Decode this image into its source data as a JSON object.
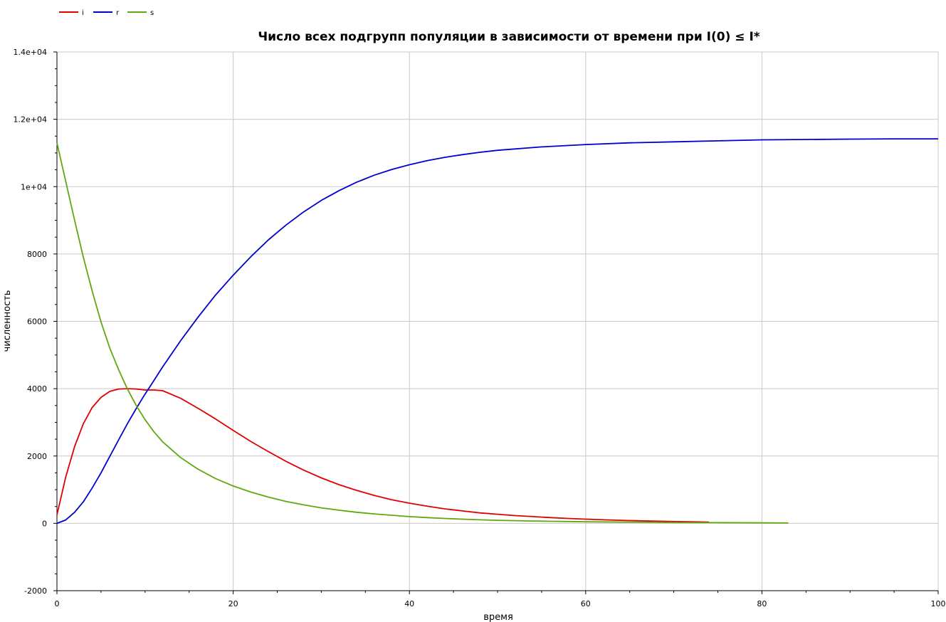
{
  "chart_data": {
    "type": "line",
    "title": "Число всех подгрупп популяции в зависимости от времени при I(0) ≤ I*",
    "xlabel": "время",
    "ylabel": "численность",
    "xlim": [
      0,
      100
    ],
    "ylim": [
      -2000,
      14000
    ],
    "x_ticks": [
      0,
      20,
      40,
      60,
      80,
      100
    ],
    "x_tick_labels": [
      "0",
      "20",
      "40",
      "60",
      "80",
      "100"
    ],
    "y_ticks": [
      -2000,
      0,
      2000,
      4000,
      6000,
      8000,
      10000,
      12000,
      14000
    ],
    "y_tick_labels": [
      "-2000",
      "0",
      "2000",
      "4000",
      "6000",
      "8000",
      "1e+04",
      "1.2e+04",
      "1.4e+04"
    ],
    "grid": true,
    "legend_position": "top-left",
    "series": [
      {
        "name": "i",
        "color": "#e00000",
        "x": [
          0,
          1,
          2,
          3,
          4,
          5,
          6,
          7,
          8,
          9,
          10,
          11,
          12,
          14,
          16,
          18,
          20,
          22,
          24,
          26,
          28,
          30,
          32,
          34,
          36,
          38,
          40,
          42,
          44,
          46,
          48,
          50,
          52,
          54,
          56,
          58,
          60,
          62,
          64,
          66,
          68,
          70,
          72,
          74
        ],
        "values": [
          250,
          1380,
          2280,
          2960,
          3440,
          3740,
          3920,
          3990,
          4000,
          3990,
          3960,
          3960,
          3940,
          3720,
          3420,
          3100,
          2760,
          2430,
          2130,
          1840,
          1580,
          1350,
          1150,
          980,
          830,
          700,
          600,
          510,
          430,
          370,
          310,
          270,
          230,
          200,
          170,
          145,
          125,
          105,
          90,
          75,
          65,
          55,
          45,
          35
        ]
      },
      {
        "name": "r",
        "color": "#0000d0",
        "x": [
          0,
          1,
          2,
          3,
          4,
          5,
          6,
          7,
          8,
          9,
          10,
          11,
          12,
          14,
          16,
          18,
          20,
          22,
          24,
          26,
          28,
          30,
          32,
          34,
          36,
          38,
          40,
          42,
          44,
          46,
          48,
          50,
          55,
          60,
          65,
          70,
          75,
          80,
          85,
          90,
          95,
          100
        ],
        "values": [
          0,
          100,
          330,
          640,
          1050,
          1500,
          1990,
          2480,
          2960,
          3410,
          3840,
          4240,
          4650,
          5410,
          6120,
          6780,
          7370,
          7920,
          8420,
          8860,
          9250,
          9590,
          9880,
          10130,
          10340,
          10510,
          10650,
          10770,
          10870,
          10950,
          11020,
          11080,
          11180,
          11250,
          11300,
          11330,
          11360,
          11390,
          11400,
          11410,
          11420,
          11420
        ]
      },
      {
        "name": "s",
        "color": "#5fa80f",
        "x": [
          0,
          1,
          2,
          3,
          4,
          5,
          6,
          7,
          8,
          9,
          10,
          11,
          12,
          14,
          16,
          18,
          20,
          22,
          24,
          26,
          28,
          30,
          32,
          34,
          36,
          38,
          40,
          42,
          44,
          46,
          48,
          50,
          52,
          54,
          56,
          58,
          60,
          65,
          70,
          75,
          80,
          83
        ],
        "values": [
          11300,
          10150,
          9000,
          7900,
          6900,
          5980,
          5200,
          4560,
          3990,
          3500,
          3080,
          2720,
          2420,
          1960,
          1610,
          1330,
          1110,
          930,
          780,
          650,
          550,
          460,
          390,
          330,
          280,
          240,
          200,
          170,
          145,
          125,
          105,
          90,
          80,
          70,
          60,
          55,
          45,
          35,
          25,
          20,
          15,
          10
        ]
      }
    ]
  }
}
